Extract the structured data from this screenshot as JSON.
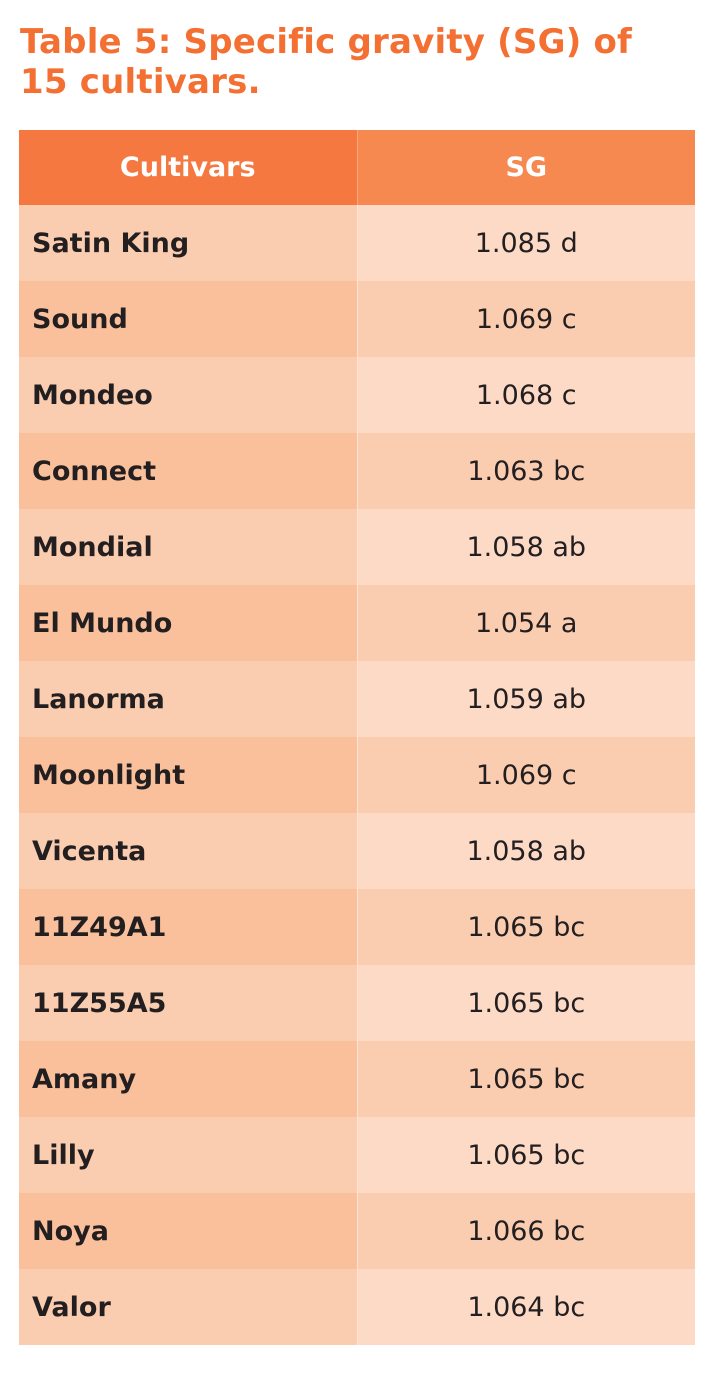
{
  "title": "Table 5: Specific gravity (SG) of 15 cultivars.",
  "table": {
    "headers": [
      "Cultivars",
      "SG"
    ],
    "rows": [
      [
        "Satin King",
        "1.085 d"
      ],
      [
        "Sound",
        "1.069 c"
      ],
      [
        "Mondeo",
        "1.068 c"
      ],
      [
        "Connect",
        "1.063 bc"
      ],
      [
        "Mondial",
        "1.058 ab"
      ],
      [
        "El Mundo",
        "1.054 a"
      ],
      [
        "Lanorma",
        "1.059 ab"
      ],
      [
        "Moonlight",
        "1.069 c"
      ],
      [
        "Vicenta",
        "1.058 ab"
      ],
      [
        "11Z49A1",
        "1.065 bc"
      ],
      [
        "11Z55A5",
        "1.065 bc"
      ],
      [
        "Amany",
        "1.065 bc"
      ],
      [
        "Lilly",
        "1.065 bc"
      ],
      [
        "Noya",
        "1.066 bc"
      ],
      [
        "Valor",
        "1.064 bc"
      ]
    ]
  },
  "colors": {
    "accent": "#F36F32",
    "header_left": "#F47840",
    "header_right": "#F5894F"
  }
}
